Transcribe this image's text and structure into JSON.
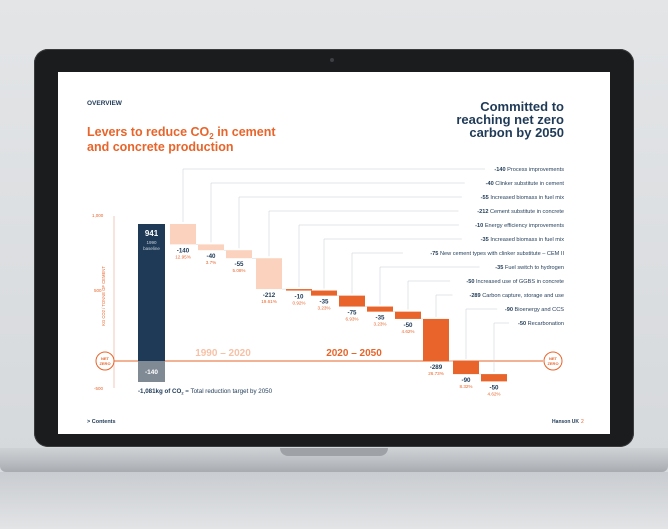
{
  "slide": {
    "section": "OVERVIEW",
    "title_line1": "Levers to reduce CO",
    "title_sub": "2",
    "title_line1_end": " in cement",
    "title_line2": "and concrete production",
    "headline_line1": "Committed to",
    "headline_line2": "reaching net zero",
    "headline_line3": "carbon by 2050",
    "footer_left": "> Contents",
    "footer_right": "Hanson UK",
    "page_number": "2",
    "y_axis_label": "KG CO2 / TONNE OF CEMENT",
    "period_1": "1990 – 2020",
    "period_2": "2020 – 2050",
    "net_zero_label_1": "NET",
    "net_zero_label_2": "ZERO",
    "total_text_pre": "-1,081kg of CO",
    "total_text_sub": "2",
    "total_text_post": " = Total reduction target by 2050",
    "baseline_label_1": "1990",
    "baseline_label_2": "baseline"
  },
  "colors": {
    "navy": "#1f3a57",
    "orange": "#e8642a",
    "light_orange": "#fbd2bd",
    "grey_bar": "#7f8a95",
    "text_dark": "#1f3a57"
  },
  "chart_data": {
    "type": "waterfall",
    "y_ticks": [
      "1,000",
      "500",
      "-500"
    ],
    "ylim": [
      -500,
      1000
    ],
    "baseline": {
      "value": 941,
      "label": "941"
    },
    "residual": {
      "value": -140,
      "label": "-140"
    },
    "steps": [
      {
        "value": -140,
        "label": "-140",
        "pct": "12.95%",
        "lever": "Process improvements",
        "period": 1
      },
      {
        "value": -40,
        "label": "-40",
        "pct": "3.7%",
        "lever": "Clinker substitute in cement",
        "period": 1
      },
      {
        "value": -55,
        "label": "-55",
        "pct": "5.08%",
        "lever": "Increased biomass in fuel mix",
        "period": 1
      },
      {
        "value": -212,
        "label": "-212",
        "pct": "19.61%",
        "lever": "Cement substitute in concrete",
        "period": 1
      },
      {
        "value": -10,
        "label": "-10",
        "pct": "0.92%",
        "lever": "Energy efficiency improvements",
        "period": 2
      },
      {
        "value": -35,
        "label": "-35",
        "pct": "3.23%",
        "lever": "Increased biomass in fuel mix",
        "period": 2
      },
      {
        "value": -75,
        "label": "-75",
        "pct": "6.93%",
        "lever": "New cement types with clinker substitute – CEM II",
        "period": 2
      },
      {
        "value": -35,
        "label": "-35",
        "pct": "3.23%",
        "lever": "Fuel switch to hydrogen",
        "period": 2
      },
      {
        "value": -50,
        "label": "-50",
        "pct": "4.62%",
        "lever": "Increased use of GGBS in concrete",
        "period": 2
      },
      {
        "value": -289,
        "label": "-289",
        "pct": "26.73%",
        "lever": "Carbon capture, storage and use",
        "period": 2
      },
      {
        "value": -90,
        "label": "-90",
        "pct": "8.32%",
        "lever": "Bioenergy and CCS",
        "period": 2
      },
      {
        "value": -50,
        "label": "-50",
        "pct": "4.62%",
        "lever": "Recarbonation",
        "period": 2
      }
    ]
  }
}
